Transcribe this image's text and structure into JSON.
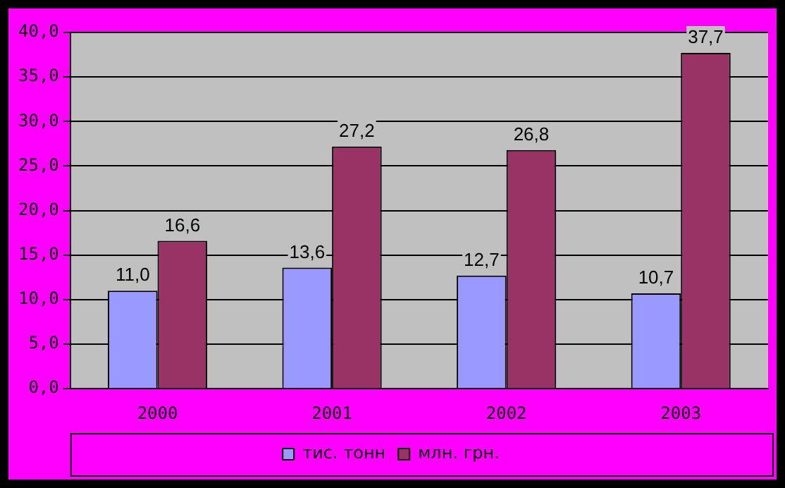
{
  "chart_data": {
    "type": "bar",
    "categories": [
      "2000",
      "2001",
      "2002",
      "2003"
    ],
    "series": [
      {
        "name": "тис. тонн",
        "color": "#9999ff",
        "values": [
          11.0,
          13.6,
          12.7,
          10.7
        ],
        "value_labels": [
          "11,0",
          "13,6",
          "12,7",
          "10,7"
        ]
      },
      {
        "name": "млн. грн.",
        "color": "#993366",
        "values": [
          16.6,
          27.2,
          26.8,
          37.7
        ],
        "value_labels": [
          "16,6",
          "27,2",
          "26,8",
          "37,7"
        ]
      }
    ],
    "ylim": [
      0,
      40
    ],
    "yticks": [
      {
        "value": 0,
        "label": "0,0"
      },
      {
        "value": 5,
        "label": "5,0"
      },
      {
        "value": 10,
        "label": "10,0"
      },
      {
        "value": 15,
        "label": "15,0"
      },
      {
        "value": 20,
        "label": "20,0"
      },
      {
        "value": 25,
        "label": "25,0"
      },
      {
        "value": 30,
        "label": "30,0"
      },
      {
        "value": 35,
        "label": "35,0"
      },
      {
        "value": 40,
        "label": "40,0"
      }
    ],
    "grid": "y",
    "legend": "bottom"
  }
}
